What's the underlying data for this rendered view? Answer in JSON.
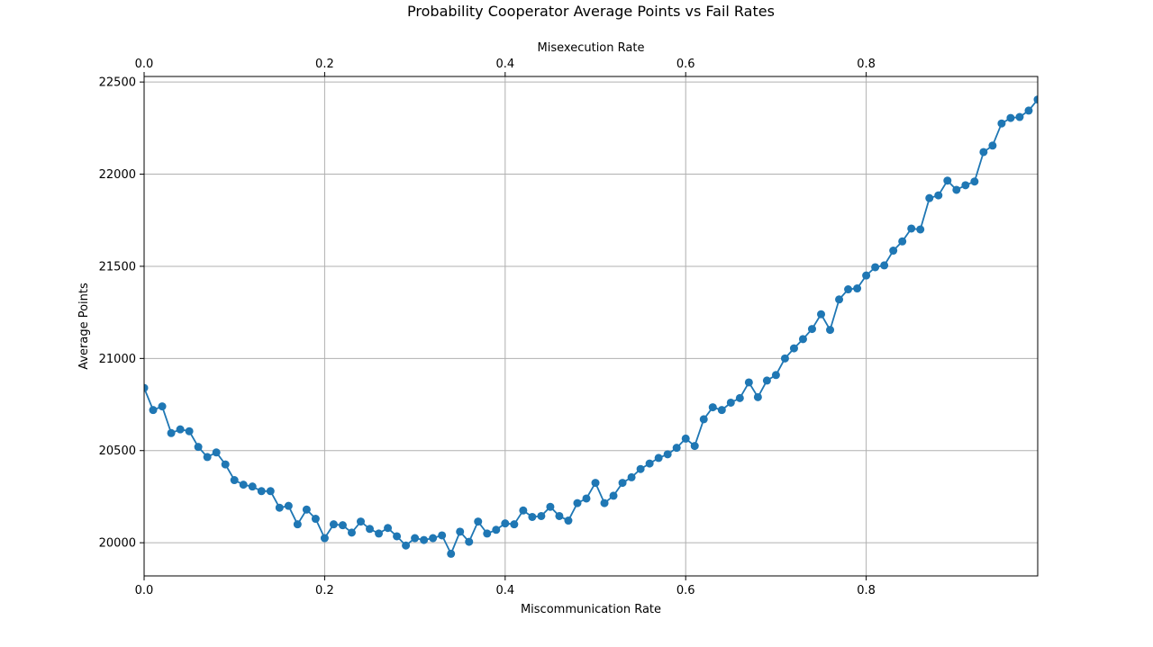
{
  "chart_data": {
    "type": "line",
    "title": "Probability Cooperator Average Points vs Fail Rates",
    "xlabel": "Miscommunication Rate",
    "x2label": "Misexecution Rate",
    "ylabel": "Average Points",
    "xlim": [
      0,
      0.99
    ],
    "ylim": [
      19820,
      22530
    ],
    "xticks": [
      0,
      0.2,
      0.4,
      0.6,
      0.8
    ],
    "xtick_labels": [
      "0.0",
      "0.2",
      "0.4",
      "0.6",
      "0.8"
    ],
    "yticks": [
      20000,
      20500,
      21000,
      21500,
      22000,
      22500
    ],
    "ytick_labels": [
      "20000",
      "20500",
      "21000",
      "21500",
      "22000",
      "22500"
    ],
    "grid": true,
    "marker": "circle",
    "color": "#1f77b4",
    "series": [
      {
        "x": [
          0.0,
          0.01,
          0.02,
          0.03,
          0.04,
          0.05,
          0.06,
          0.07,
          0.08,
          0.09,
          0.1,
          0.11,
          0.12,
          0.13,
          0.14,
          0.15,
          0.16,
          0.17,
          0.18,
          0.19,
          0.2,
          0.21,
          0.22,
          0.23,
          0.24,
          0.25,
          0.26,
          0.27,
          0.28,
          0.29,
          0.3,
          0.31,
          0.32,
          0.33,
          0.34,
          0.35,
          0.36,
          0.37,
          0.38,
          0.39,
          0.4,
          0.41,
          0.42,
          0.43,
          0.44,
          0.45,
          0.46,
          0.47,
          0.48,
          0.49,
          0.5,
          0.51,
          0.52,
          0.53,
          0.54,
          0.55,
          0.56,
          0.57,
          0.58,
          0.59,
          0.6,
          0.61,
          0.62,
          0.63,
          0.64,
          0.65,
          0.66,
          0.67,
          0.68,
          0.69,
          0.7,
          0.71,
          0.72,
          0.73,
          0.74,
          0.75,
          0.76,
          0.77,
          0.78,
          0.79,
          0.8,
          0.81,
          0.82,
          0.83,
          0.84,
          0.85,
          0.86,
          0.87,
          0.88,
          0.89,
          0.9,
          0.91,
          0.92,
          0.93,
          0.94,
          0.95,
          0.96,
          0.97,
          0.98,
          0.99
        ],
        "y": [
          20840,
          20720,
          20740,
          20595,
          20615,
          20605,
          20520,
          20465,
          20490,
          20425,
          20340,
          20315,
          20305,
          20280,
          20280,
          20190,
          20200,
          20100,
          20180,
          20130,
          20025,
          20100,
          20095,
          20055,
          20115,
          20075,
          20050,
          20080,
          20035,
          19985,
          20025,
          20015,
          20025,
          20040,
          19940,
          20060,
          20005,
          20115,
          20050,
          20070,
          20105,
          20100,
          20175,
          20140,
          20145,
          20195,
          20145,
          20120,
          20215,
          20240,
          20325,
          20215,
          20255,
          20325,
          20355,
          20400,
          20430,
          20460,
          20480,
          20515,
          20565,
          20525,
          20670,
          20735,
          20720,
          20760,
          20785,
          20870,
          20790,
          20880,
          20910,
          21000,
          21055,
          21105,
          21160,
          21240,
          21155,
          21320,
          21375,
          21380,
          21450,
          21495,
          21505,
          21585,
          21635,
          21705,
          21700,
          21870,
          21885,
          21965,
          21915,
          21940,
          21960,
          22120,
          22155,
          22275,
          22305,
          22310,
          22345,
          22405
        ]
      }
    ]
  }
}
